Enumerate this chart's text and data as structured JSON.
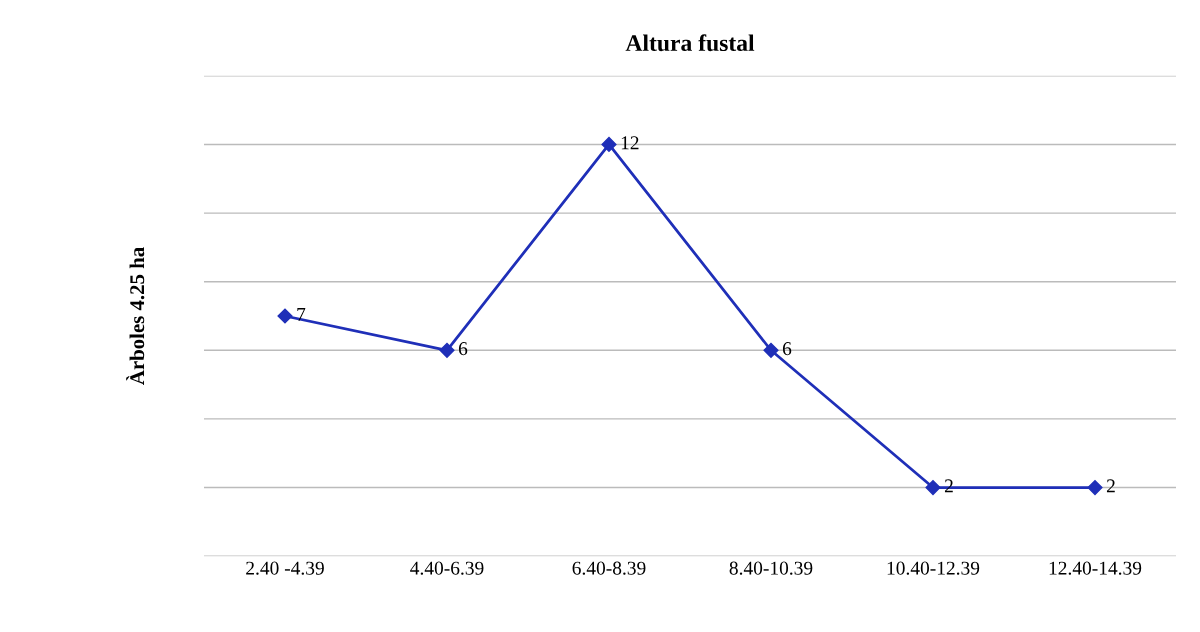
{
  "chart_data": {
    "type": "line",
    "title": "Altura fustal",
    "ylabel": "Àrboles 4.25 ha",
    "categories": [
      "2.40 -4.39",
      "4.40-6.39",
      "6.40-8.39",
      "8.40-10.39",
      "10.40-12.39",
      "12.40-14.39"
    ],
    "series": [
      {
        "color": "#1f2fb8",
        "values": [
          7,
          6,
          12,
          6,
          2,
          2
        ]
      }
    ],
    "ylim": [
      0,
      14
    ],
    "yticks": [
      {
        "value": 0,
        "label": null
      },
      {
        "value": 2,
        "label": null
      },
      {
        "value": 4,
        "label": null
      },
      {
        "value": 6,
        "label": null
      },
      {
        "value": 8,
        "label": null
      },
      {
        "value": 10,
        "label": null
      },
      {
        "value": 12,
        "label": null
      },
      {
        "value": 14,
        "label": null
      }
    ],
    "tick_labels": "x",
    "grid": "y",
    "legend": false,
    "marker": "diamond",
    "line_style": "solid",
    "data_labels": true
  }
}
